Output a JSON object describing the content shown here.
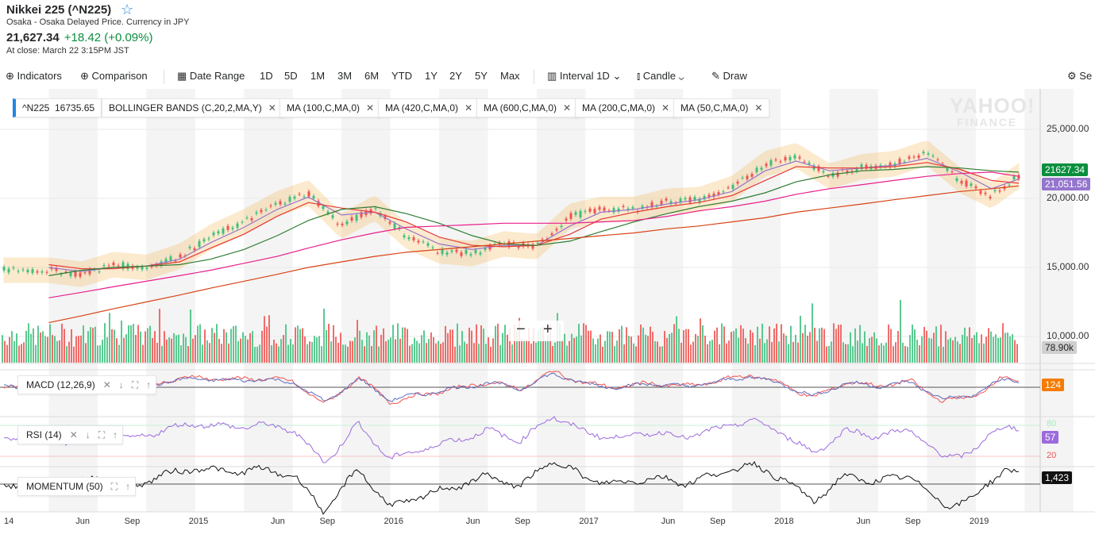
{
  "header": {
    "title": "Nikkei 225 (^N225)",
    "subtitle": "Osaka - Osaka Delayed Price. Currency in JPY",
    "price": "21,627.34",
    "change": "+18.42 (+0.09%)",
    "close_time": "At close: March 22 3:15PM JST"
  },
  "toolbar": {
    "indicators": "Indicators",
    "comparison": "Comparison",
    "date_range": "Date Range",
    "ranges": [
      "1D",
      "5D",
      "1M",
      "3M",
      "6M",
      "YTD",
      "1Y",
      "2Y",
      "5Y",
      "Max"
    ],
    "interval": "Interval",
    "interval_value": "1D",
    "candle": "Candle",
    "draw": "Draw",
    "settings": "Se"
  },
  "legend": {
    "symbol": "^N225",
    "symbol_value": "16735.65",
    "studies": [
      "BOLLINGER BANDS (C,20,2,MA,Y)",
      "MA (100,C,MA,0)",
      "MA (420,C,MA,0)",
      "MA (600,C,MA,0)",
      "MA (200,C,MA,0)",
      "MA (50,C,MA,0)"
    ]
  },
  "watermark": {
    "line1": "YAHOO!",
    "line2": "FINANCE"
  },
  "tags": {
    "price": "21627.34",
    "ma": "21,051.56",
    "volume": "78.90k",
    "macd": "124",
    "rsi": "57",
    "momentum": "1,423"
  },
  "panels": {
    "macd": "MACD (12,26,9)",
    "rsi": "RSI (14)",
    "momentum": "MOMENTUM (50)",
    "rsi_80": "80",
    "rsi_20": "20"
  },
  "colors": {
    "up": "#3fbf7f",
    "down": "#ef5350",
    "bollinger": "#f5b041",
    "ma100": "#e53935",
    "ma420": "#e91e8c",
    "ma600": "#d84315",
    "ma200": "#2e7d32",
    "ma50": "#9575cd",
    "price_tag": "#0a8f3d",
    "macd_tag": "#f57c00",
    "rsi_tag": "#9c6ade"
  },
  "chart_data": {
    "type": "line",
    "title": "Nikkei 225 (^N225)",
    "y_ticks": [
      "25,000.00",
      "20,000.00",
      "15,000.00",
      "10,000.00"
    ],
    "ylim": [
      8000,
      28000
    ],
    "x_labels": [
      "14",
      "Jun",
      "Sep",
      "2015",
      "Jun",
      "Sep",
      "2016",
      "Jun",
      "Sep",
      "2017",
      "Jun",
      "Sep",
      "2018",
      "Jun",
      "Sep",
      "2019"
    ],
    "x": [
      2014.25,
      2014.42,
      2014.58,
      2014.75,
      2014.92,
      2015.08,
      2015.25,
      2015.42,
      2015.58,
      2015.75,
      2015.92,
      2016.08,
      2016.25,
      2016.42,
      2016.58,
      2016.75,
      2016.92,
      2017.08,
      2017.25,
      2017.42,
      2017.58,
      2017.75,
      2017.92,
      2018.08,
      2018.25,
      2018.42,
      2018.58,
      2018.75,
      2018.92,
      2019.08,
      2019.22
    ],
    "series": [
      {
        "name": "^N225 close",
        "values": [
          14800,
          14500,
          15200,
          15000,
          15800,
          17200,
          18300,
          19600,
          20400,
          18000,
          19300,
          17300,
          16200,
          16000,
          16700,
          16500,
          18700,
          19200,
          19200,
          19800,
          19900,
          20700,
          22500,
          23100,
          21600,
          22300,
          22500,
          23300,
          21300,
          20200,
          21627
        ]
      },
      {
        "name": "MA (50,C,MA,0)",
        "values": [
          15000,
          14700,
          15000,
          15100,
          15600,
          16800,
          17900,
          19200,
          20100,
          18800,
          19000,
          17800,
          16700,
          16300,
          16600,
          16600,
          18000,
          19000,
          19200,
          19600,
          19900,
          20500,
          22000,
          22700,
          22000,
          22200,
          22400,
          22900,
          21900,
          20700,
          21400
        ]
      },
      {
        "name": "MA (100,C,MA,0)",
        "values": [
          15200,
          14900,
          14900,
          15100,
          15400,
          16400,
          17400,
          18700,
          19700,
          19300,
          19000,
          18300,
          17200,
          16600,
          16500,
          16600,
          17400,
          18500,
          19000,
          19400,
          19700,
          20200,
          21300,
          22300,
          22200,
          22200,
          22300,
          22600,
          22100,
          21300,
          21100
        ]
      },
      {
        "name": "MA (200,C,MA,0)",
        "values": [
          14400,
          14800,
          15000,
          15100,
          15200,
          15600,
          16300,
          17300,
          18400,
          19200,
          19400,
          18900,
          18200,
          17300,
          16700,
          16600,
          16900,
          17600,
          18300,
          18900,
          19400,
          19800,
          20400,
          21200,
          21700,
          22000,
          22100,
          22300,
          22200,
          22000,
          21900
        ]
      },
      {
        "name": "MA (420,C,MA,0)",
        "values": [
          12800,
          13200,
          13600,
          14000,
          14400,
          14800,
          15300,
          15800,
          16400,
          17000,
          17500,
          17900,
          18000,
          18100,
          18200,
          18200,
          18200,
          18300,
          18400,
          18700,
          19100,
          19400,
          19800,
          20300,
          20700,
          21000,
          21300,
          21600,
          21800,
          21900,
          21600
        ]
      },
      {
        "name": "MA (600,C,MA,0)",
        "values": [
          11000,
          11500,
          12000,
          12500,
          13000,
          13500,
          14000,
          14500,
          15000,
          15400,
          15800,
          16100,
          16300,
          16500,
          16700,
          16900,
          17100,
          17300,
          17500,
          17800,
          18000,
          18300,
          18600,
          19000,
          19300,
          19600,
          19900,
          20200,
          20500,
          20700,
          20900
        ]
      }
    ],
    "volume_label": "78.90k",
    "indicators": [
      "MACD (12,26,9)",
      "RSI (14)",
      "MOMENTUM (50)"
    ]
  }
}
